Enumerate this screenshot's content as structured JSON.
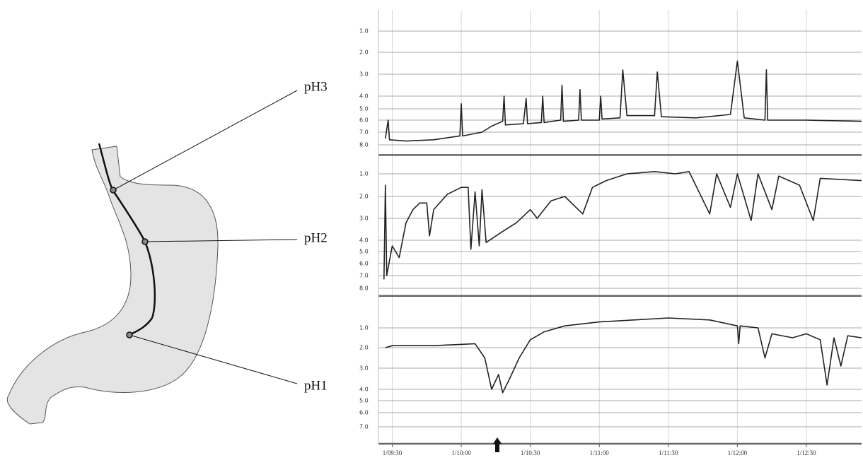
{
  "chart_data": [
    {
      "type": "line",
      "title": "pH3",
      "xlim": [
        9.4,
        12.9
      ],
      "ylim": [
        0,
        8.8
      ],
      "yticks": [
        {
          "value": 1,
          "label": "1.0"
        },
        {
          "value": 2,
          "label": "2.0"
        },
        {
          "value": 3,
          "label": "3.0"
        },
        {
          "value": 4,
          "label": "4.0"
        },
        {
          "value": 5,
          "label": "5.0"
        },
        {
          "value": 6,
          "label": "6.0"
        },
        {
          "value": 7,
          "label": "7.0"
        },
        {
          "value": 8,
          "label": "8.0"
        }
      ],
      "color": "#222",
      "x": [
        9.45,
        9.47,
        9.48,
        9.6,
        9.8,
        9.99,
        10.0,
        10.01,
        10.15,
        10.22,
        10.3,
        10.31,
        10.32,
        10.45,
        10.47,
        10.48,
        10.58,
        10.59,
        10.6,
        10.72,
        10.73,
        10.74,
        10.85,
        10.86,
        10.87,
        11.0,
        11.01,
        11.02,
        11.15,
        11.17,
        11.2,
        11.4,
        11.42,
        11.45,
        11.7,
        11.95,
        12.0,
        12.05,
        12.2,
        12.21,
        12.22,
        12.5,
        12.9
      ],
      "values": [
        7.5,
        6.0,
        7.6,
        7.7,
        7.6,
        7.3,
        4.6,
        7.3,
        7.0,
        6.5,
        6.1,
        4.0,
        6.4,
        6.3,
        4.2,
        6.3,
        6.2,
        4.0,
        6.2,
        6.0,
        3.5,
        6.1,
        6.0,
        3.7,
        6.0,
        6.0,
        4.0,
        5.9,
        5.8,
        2.8,
        5.6,
        5.6,
        2.9,
        5.7,
        5.8,
        5.5,
        2.4,
        5.8,
        6.0,
        2.8,
        6.0,
        6.0,
        6.1
      ]
    },
    {
      "type": "line",
      "title": "pH2",
      "xlim": [
        9.4,
        12.9
      ],
      "ylim": [
        0.4,
        8.6
      ],
      "yticks": [
        {
          "value": 1,
          "label": "1.0"
        },
        {
          "value": 2,
          "label": "2.0"
        },
        {
          "value": 3,
          "label": "3.0"
        },
        {
          "value": 4,
          "label": "4.0"
        },
        {
          "value": 5,
          "label": "5.0"
        },
        {
          "value": 6,
          "label": "6.0"
        },
        {
          "value": 7,
          "label": "7.0"
        },
        {
          "value": 8,
          "label": "8.0"
        }
      ],
      "color": "#222",
      "x": [
        9.44,
        9.45,
        9.46,
        9.5,
        9.55,
        9.6,
        9.65,
        9.7,
        9.75,
        9.77,
        9.8,
        9.9,
        10.0,
        10.05,
        10.07,
        10.1,
        10.13,
        10.15,
        10.18,
        10.3,
        10.4,
        10.5,
        10.55,
        10.65,
        10.75,
        10.88,
        10.95,
        11.05,
        11.2,
        11.4,
        11.55,
        11.65,
        11.8,
        11.85,
        11.95,
        12.0,
        12.1,
        12.15,
        12.25,
        12.3,
        12.45,
        12.55,
        12.6,
        12.9
      ],
      "values": [
        7.3,
        1.5,
        7.0,
        4.5,
        5.5,
        3.2,
        2.6,
        2.3,
        2.3,
        3.8,
        2.6,
        1.9,
        1.6,
        1.6,
        4.8,
        1.8,
        4.5,
        1.7,
        4.2,
        3.6,
        3.2,
        2.6,
        3.0,
        2.2,
        2.0,
        2.8,
        1.6,
        1.3,
        1.0,
        0.9,
        1.0,
        0.9,
        2.8,
        1.0,
        2.5,
        1.0,
        3.1,
        1.0,
        2.6,
        1.1,
        1.5,
        3.1,
        1.2,
        1.3
      ]
    },
    {
      "type": "line",
      "title": "pH1",
      "xlim": [
        9.4,
        12.9
      ],
      "ylim": [
        0.2,
        8.2
      ],
      "yticks": [
        {
          "value": 1,
          "label": "1.0"
        },
        {
          "value": 2,
          "label": "2.0"
        },
        {
          "value": 3,
          "label": "3.0"
        },
        {
          "value": 4,
          "label": "4.0"
        },
        {
          "value": 5,
          "label": "5.0"
        },
        {
          "value": 6,
          "label": "6.0"
        },
        {
          "value": 7,
          "label": "7.0"
        }
      ],
      "xticks": [
        {
          "value": 9.5,
          "label": "1/09:30"
        },
        {
          "value": 10,
          "label": "1/10:00"
        },
        {
          "value": 10.5,
          "label": "1/10:30"
        },
        {
          "value": 11,
          "label": "1/11:00"
        },
        {
          "value": 11.5,
          "label": "1/11:30"
        },
        {
          "value": 12,
          "label": "1/12:00"
        },
        {
          "value": 12.5,
          "label": "1/12:30"
        }
      ],
      "color": "#222",
      "x": [
        9.45,
        9.5,
        9.8,
        10.1,
        10.17,
        10.22,
        10.27,
        10.3,
        10.35,
        10.42,
        10.5,
        10.6,
        10.75,
        11.0,
        11.25,
        11.5,
        11.8,
        12.0,
        12.01,
        12.02,
        12.15,
        12.2,
        12.25,
        12.4,
        12.5,
        12.6,
        12.65,
        12.7,
        12.75,
        12.8,
        12.9
      ],
      "values": [
        2.0,
        1.9,
        1.9,
        1.8,
        2.5,
        4.0,
        3.3,
        4.3,
        3.5,
        2.5,
        1.6,
        1.2,
        0.9,
        0.7,
        0.6,
        0.5,
        0.6,
        0.9,
        1.8,
        0.9,
        1.0,
        2.5,
        1.3,
        1.5,
        1.3,
        1.6,
        3.8,
        1.5,
        2.9,
        1.4,
        1.5
      ]
    }
  ]
}
